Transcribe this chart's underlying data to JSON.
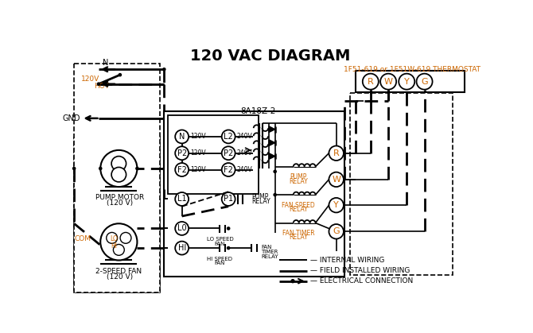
{
  "title": "120 VAC DIAGRAM",
  "bg_color": "#ffffff",
  "black": "#000000",
  "orange": "#cc6600",
  "thermostat_label": "1F51-619 or 1F51W-619 THERMOSTAT",
  "box_label": "8A18Z-2",
  "figsize": [
    6.7,
    4.19
  ],
  "dpi": 100
}
